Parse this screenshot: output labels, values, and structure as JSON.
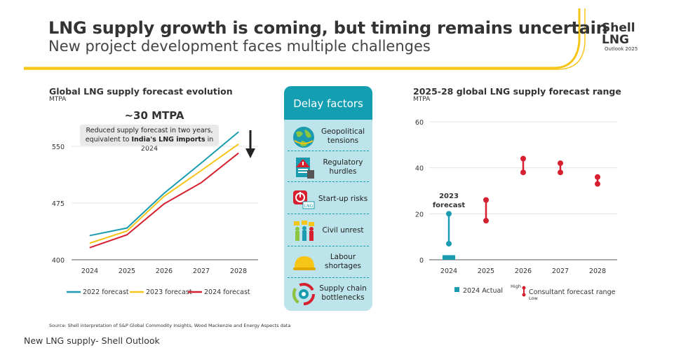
{
  "header": {
    "title": "LNG supply growth is coming, but timing remains uncertain",
    "subtitle": "New project development faces multiple challenges",
    "logo_line1": "Shell",
    "logo_line2": "LNG",
    "logo_line3": "Outlook 2025"
  },
  "colors": {
    "accent_yellow": "#f5c518",
    "teal": "#1a9bb0",
    "red": "#d6202f",
    "panel_bg": "#bde4ea",
    "panel_header": "#149eb1"
  },
  "delay_factors": {
    "title": "Delay factors",
    "items": [
      {
        "label": "Geopolitical tensions",
        "icon": "globe-icon"
      },
      {
        "label": "Regulatory hurdles",
        "icon": "warning-document-icon"
      },
      {
        "label": "Start-up risks",
        "icon": "power-button-icon"
      },
      {
        "label": "Civil unrest",
        "icon": "protest-crowd-icon"
      },
      {
        "label": "Labour shortages",
        "icon": "hard-hat-icon"
      },
      {
        "label": "Supply chain bottlenecks",
        "icon": "gear-cycle-icon"
      }
    ]
  },
  "annotation": {
    "headline": "~30 MTPA",
    "line1": "Reduced supply forecast in two years,",
    "line2_prefix": "equivalent to ",
    "line2_bold": "India's LNG imports",
    "line2_suffix": " in 2024"
  },
  "source": "Source: Shell interpretation of S&P Global Commodity Insights, Wood Mackenzie and Energy Aspects data",
  "caption": "New LNG supply- Shell Outlook",
  "chart_data": [
    {
      "type": "line",
      "title": "Global LNG supply forecast evolution",
      "ylabel": "MTPA",
      "x": [
        "2024",
        "2025",
        "2026",
        "2027",
        "2028"
      ],
      "yticks": [
        400,
        475,
        550
      ],
      "ylim": [
        400,
        570
      ],
      "grid": true,
      "legend_position": "bottom",
      "series": [
        {
          "name": "2022 forecast",
          "color": "#1a9bb0",
          "values": [
            432,
            442,
            488,
            528,
            569
          ]
        },
        {
          "name": "2023 forecast",
          "color": "#f5c518",
          "values": [
            422,
            438,
            484,
            518,
            553
          ]
        },
        {
          "name": "2024 forecast",
          "color": "#d6202f",
          "values": [
            416,
            433,
            474,
            502,
            541
          ]
        }
      ]
    },
    {
      "type": "range",
      "title": "2025-28 global LNG supply forecast range",
      "ylabel": "MTPA",
      "x": [
        "2024",
        "2025",
        "2026",
        "2027",
        "2028"
      ],
      "yticks": [
        0,
        20,
        40,
        60
      ],
      "ylim": [
        0,
        60
      ],
      "grid": true,
      "legend_position": "bottom",
      "actual": {
        "name": "2024 Actual",
        "x": "2024",
        "value": 2,
        "color": "#1a9bb0"
      },
      "forecast_2023": {
        "label": "2023 forecast",
        "x": "2024",
        "low": 7,
        "high": 20,
        "color": "#1a9bb0"
      },
      "ranges": [
        {
          "x": "2025",
          "low": 17,
          "high": 26
        },
        {
          "x": "2026",
          "low": 38,
          "high": 44
        },
        {
          "x": "2027",
          "low": 38,
          "high": 42
        },
        {
          "x": "2028",
          "low": 33,
          "high": 36
        }
      ],
      "range_legend": {
        "name": "Consultant forecast range",
        "high_label": "High",
        "low_label": "Low",
        "color": "#d6202f"
      }
    }
  ]
}
